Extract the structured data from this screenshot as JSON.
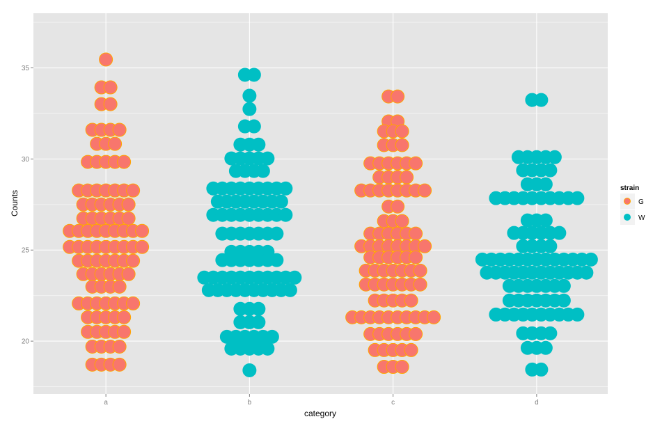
{
  "chart_data": {
    "type": "dotplot",
    "title": "",
    "xlabel": "category",
    "ylabel": "Counts",
    "categories": [
      "a",
      "b",
      "c",
      "d"
    ],
    "ylim": [
      17.1,
      38.0
    ],
    "yticks": [
      20,
      25,
      30,
      35
    ],
    "ytick_labels": [
      "20",
      "25",
      "30",
      "35"
    ],
    "grid": true,
    "legend": {
      "title": "strain",
      "position": "right",
      "entries": [
        {
          "label": "G",
          "color": "#F8766D"
        },
        {
          "label": "W",
          "color": "#00BFC4"
        }
      ]
    },
    "stroke_color": "#FFA500",
    "bin_rows": [
      {
        "category": "a",
        "strain": "G",
        "rows": [
          {
            "y": 35.46,
            "count": 1
          },
          {
            "y": 33.93,
            "count": 2
          },
          {
            "y": 33.01,
            "count": 2
          },
          {
            "y": 31.6,
            "count": 4
          },
          {
            "y": 30.83,
            "count": 3
          },
          {
            "y": 29.84,
            "count": 5
          },
          {
            "y": 28.27,
            "count": 7
          },
          {
            "y": 27.5,
            "count": 6
          },
          {
            "y": 26.74,
            "count": 6
          },
          {
            "y": 26.05,
            "count": 9
          },
          {
            "y": 25.17,
            "count": 9
          },
          {
            "y": 24.41,
            "count": 7
          },
          {
            "y": 23.68,
            "count": 6
          },
          {
            "y": 22.99,
            "count": 4
          },
          {
            "y": 22.07,
            "count": 7
          },
          {
            "y": 21.31,
            "count": 5
          },
          {
            "y": 20.51,
            "count": 5
          },
          {
            "y": 19.7,
            "count": 4
          },
          {
            "y": 18.71,
            "count": 4
          }
        ]
      },
      {
        "category": "b",
        "strain": "W",
        "rows": [
          {
            "y": 34.62,
            "count": 2
          },
          {
            "y": 33.47,
            "count": 1
          },
          {
            "y": 32.74,
            "count": 1
          },
          {
            "y": 31.79,
            "count": 2
          },
          {
            "y": 30.79,
            "count": 3
          },
          {
            "y": 30.03,
            "count": 5
          },
          {
            "y": 29.34,
            "count": 4
          },
          {
            "y": 28.38,
            "count": 9
          },
          {
            "y": 27.66,
            "count": 8
          },
          {
            "y": 26.93,
            "count": 9
          },
          {
            "y": 25.9,
            "count": 7
          },
          {
            "y": 24.9,
            "count": 5
          },
          {
            "y": 24.45,
            "count": 7
          },
          {
            "y": 23.49,
            "count": 11
          },
          {
            "y": 22.8,
            "count": 10
          },
          {
            "y": 21.77,
            "count": 3
          },
          {
            "y": 21.04,
            "count": 3
          },
          {
            "y": 20.24,
            "count": 6
          },
          {
            "y": 19.59,
            "count": 5
          },
          {
            "y": 18.4,
            "count": 1
          }
        ]
      },
      {
        "category": "c",
        "strain": "G",
        "rows": [
          {
            "y": 33.43,
            "count": 2
          },
          {
            "y": 32.06,
            "count": 2
          },
          {
            "y": 31.52,
            "count": 3
          },
          {
            "y": 30.76,
            "count": 3
          },
          {
            "y": 29.76,
            "count": 6
          },
          {
            "y": 29.0,
            "count": 4
          },
          {
            "y": 28.27,
            "count": 8
          },
          {
            "y": 27.39,
            "count": 2
          },
          {
            "y": 26.59,
            "count": 3
          },
          {
            "y": 25.9,
            "count": 6
          },
          {
            "y": 25.21,
            "count": 8
          },
          {
            "y": 24.6,
            "count": 6
          },
          {
            "y": 23.87,
            "count": 7
          },
          {
            "y": 23.11,
            "count": 7
          },
          {
            "y": 22.23,
            "count": 5
          },
          {
            "y": 21.31,
            "count": 10
          },
          {
            "y": 20.39,
            "count": 6
          },
          {
            "y": 19.51,
            "count": 5
          },
          {
            "y": 18.59,
            "count": 3
          }
        ]
      },
      {
        "category": "d",
        "strain": "W",
        "rows": [
          {
            "y": 33.24,
            "count": 2
          },
          {
            "y": 30.1,
            "count": 5
          },
          {
            "y": 29.38,
            "count": 4
          },
          {
            "y": 28.61,
            "count": 3
          },
          {
            "y": 27.85,
            "count": 10
          },
          {
            "y": 26.63,
            "count": 3
          },
          {
            "y": 25.94,
            "count": 6
          },
          {
            "y": 25.21,
            "count": 4
          },
          {
            "y": 24.48,
            "count": 13
          },
          {
            "y": 23.76,
            "count": 12
          },
          {
            "y": 23.03,
            "count": 7
          },
          {
            "y": 22.23,
            "count": 7
          },
          {
            "y": 21.46,
            "count": 10
          },
          {
            "y": 20.43,
            "count": 4
          },
          {
            "y": 19.63,
            "count": 3
          },
          {
            "y": 18.44,
            "count": 2
          }
        ]
      }
    ]
  }
}
